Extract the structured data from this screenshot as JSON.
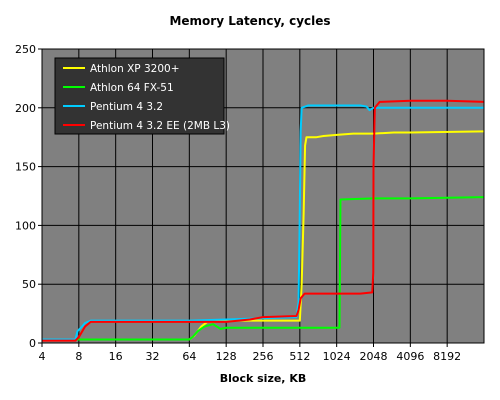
{
  "chart_data": {
    "type": "line",
    "title": "Memory Latency, cycles",
    "xlabel": "Block size, KB",
    "ylabel": "",
    "x_scale": "log2",
    "xlim": [
      4,
      16384
    ],
    "x_ticks": [
      4,
      8,
      16,
      32,
      64,
      128,
      256,
      512,
      1024,
      2048,
      4096,
      8192
    ],
    "ylim": [
      0,
      250
    ],
    "y_ticks": [
      0,
      50,
      100,
      150,
      200,
      250
    ],
    "grid": true,
    "plot_background": "#808080",
    "legend_position": "top-left",
    "series": [
      {
        "name": "Athlon XP 3200+",
        "color": "#ffff00",
        "points": [
          [
            4,
            3
          ],
          [
            8,
            3
          ],
          [
            16,
            3
          ],
          [
            32,
            3
          ],
          [
            64,
            3
          ],
          [
            70,
            6
          ],
          [
            80,
            14
          ],
          [
            90,
            18
          ],
          [
            100,
            18
          ],
          [
            128,
            19
          ],
          [
            256,
            19
          ],
          [
            512,
            19
          ],
          [
            530,
            50
          ],
          [
            550,
            110
          ],
          [
            565,
            168
          ],
          [
            580,
            175
          ],
          [
            700,
            175
          ],
          [
            800,
            176
          ],
          [
            1024,
            177
          ],
          [
            1400,
            178
          ],
          [
            2048,
            178
          ],
          [
            3000,
            179
          ],
          [
            4096,
            179
          ],
          [
            16384,
            180
          ]
        ]
      },
      {
        "name": "Athlon 64 FX-51",
        "color": "#00ff00",
        "points": [
          [
            4,
            3
          ],
          [
            8,
            3
          ],
          [
            16,
            3
          ],
          [
            32,
            3
          ],
          [
            64,
            3
          ],
          [
            68,
            5
          ],
          [
            75,
            10
          ],
          [
            85,
            14
          ],
          [
            100,
            16
          ],
          [
            115,
            12
          ],
          [
            128,
            13
          ],
          [
            256,
            13
          ],
          [
            512,
            13
          ],
          [
            1024,
            13
          ],
          [
            1080,
            13
          ],
          [
            1100,
            122
          ],
          [
            2048,
            123
          ],
          [
            4096,
            123
          ],
          [
            16384,
            124
          ]
        ]
      },
      {
        "name": "Pentium 4 3.2",
        "color": "#00ccff",
        "points": [
          [
            4,
            3
          ],
          [
            7.5,
            3
          ],
          [
            7.8,
            10
          ],
          [
            8.5,
            14
          ],
          [
            9,
            17
          ],
          [
            10,
            19
          ],
          [
            16,
            19
          ],
          [
            32,
            19
          ],
          [
            64,
            19
          ],
          [
            128,
            20
          ],
          [
            256,
            21
          ],
          [
            480,
            22
          ],
          [
            500,
            35
          ],
          [
            510,
            100
          ],
          [
            520,
            180
          ],
          [
            530,
            200
          ],
          [
            600,
            202
          ],
          [
            1024,
            202
          ],
          [
            1600,
            202
          ],
          [
            1800,
            201
          ],
          [
            1900,
            198
          ],
          [
            2048,
            200
          ],
          [
            4096,
            200
          ],
          [
            8192,
            200
          ],
          [
            16384,
            200
          ]
        ]
      },
      {
        "name": "Pentium 4 3.2 EE (2MB L3)",
        "color": "#ff0000",
        "points": [
          [
            4,
            2
          ],
          [
            7.5,
            2
          ],
          [
            8,
            5
          ],
          [
            9,
            14
          ],
          [
            10,
            18
          ],
          [
            16,
            18
          ],
          [
            32,
            18
          ],
          [
            64,
            18
          ],
          [
            128,
            18
          ],
          [
            200,
            20
          ],
          [
            256,
            22
          ],
          [
            480,
            23
          ],
          [
            500,
            28
          ],
          [
            520,
            38
          ],
          [
            560,
            42
          ],
          [
            1024,
            42
          ],
          [
            1600,
            42
          ],
          [
            2000,
            43
          ],
          [
            2040,
            60
          ],
          [
            2048,
            150
          ],
          [
            2100,
            200
          ],
          [
            2300,
            205
          ],
          [
            4096,
            206
          ],
          [
            8192,
            206
          ],
          [
            16384,
            205
          ]
        ]
      }
    ]
  }
}
